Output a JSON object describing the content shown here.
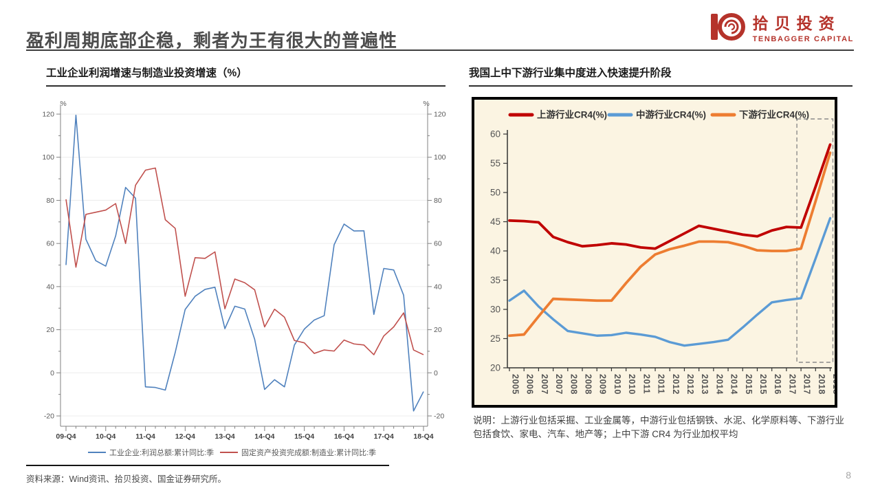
{
  "slide": {
    "title": "盈利周期底部企稳，剩者为王有很大的普遍性",
    "page_number": "8",
    "footer_source": "资料来源：Wind资讯、拾贝投资、国金证券研究所。",
    "logo": {
      "cn": "拾贝投资",
      "en": "TENBAGGER CAPITAL",
      "brand_color": "#b5332b"
    }
  },
  "chart_data": [
    {
      "type": "line",
      "title": "工业企业利润增速与制造业投资增速（%）",
      "y_axis_unit": "%",
      "ylim": [
        -20,
        120
      ],
      "y_ticks": [
        120,
        100,
        80,
        60,
        40,
        20,
        0,
        -20
      ],
      "x_tick_labels": [
        "09-Q4",
        "10-Q4",
        "11-Q4",
        "12-Q4",
        "13-Q4",
        "14-Q4",
        "15-Q4",
        "16-Q4",
        "17-Q4",
        "18-Q4"
      ],
      "x_label_every": 4,
      "grid": "horizontal-light",
      "legend_position": "bottom",
      "series": [
        {
          "name": "工业企业:利润总额:累计同比:季",
          "color": "#4f81bd",
          "values": [
            50,
            119.5,
            62,
            52,
            49.5,
            63.5,
            86,
            81,
            -6.5,
            -6.8,
            -8,
            9.5,
            29.4,
            35.5,
            38.7,
            39.7,
            20.5,
            30.9,
            29.6,
            15.5,
            -7.7,
            -3.2,
            -6.5,
            12.9,
            20.3,
            24.5,
            26.5,
            59.4,
            69,
            65.8,
            65.9,
            27.1,
            48.4,
            47.7,
            36,
            -17.7,
            -8.7
          ]
        },
        {
          "name": "固定资产投资完成额:制造业:累计同比:季",
          "color": "#c0504d",
          "values": [
            80.5,
            49,
            73.5,
            74.5,
            75.5,
            78.5,
            60,
            87,
            94,
            95,
            71,
            67,
            35.5,
            53.4,
            53.1,
            56.1,
            29.7,
            43.5,
            41.8,
            38.5,
            21.3,
            29.5,
            25.8,
            15,
            13.9,
            9,
            10.6,
            10.1,
            15.2,
            13.4,
            12.9,
            8.4,
            17.1,
            21.3,
            27.8,
            10.6,
            8.4
          ]
        }
      ]
    },
    {
      "type": "line",
      "title": "我国上中下游行业集中度进入快速提升阶段",
      "background": "#fbf4e2",
      "ylim": [
        20,
        60
      ],
      "y_ticks": [
        60,
        55,
        50,
        45,
        40,
        35,
        30,
        25,
        20
      ],
      "categories": [
        "2005",
        "2006",
        "2007",
        "2007",
        "2008",
        "2008",
        "2009",
        "2010",
        "2010",
        "2011",
        "2011",
        "2012",
        "2012",
        "2013",
        "2014",
        "2014",
        "2015",
        "2015",
        "2016",
        "2017",
        "2017",
        "2018",
        "2018"
      ],
      "legend_position": "top",
      "highlight_box_last_n": 2,
      "series": [
        {
          "name": "上游行业CR4(%)",
          "color": "#c00000",
          "values": [
            45.2,
            45.1,
            44.9,
            42.4,
            41.5,
            40.8,
            41.0,
            41.3,
            41.1,
            40.6,
            40.4,
            41.7,
            43.0,
            44.3,
            43.8,
            43.3,
            42.8,
            42.5,
            43.5,
            44.1,
            44.0,
            51.0,
            58.2
          ]
        },
        {
          "name": "中游行业CR4(%)",
          "color": "#5b9bd5",
          "values": [
            31.5,
            33.2,
            30.5,
            28.3,
            26.3,
            25.9,
            25.5,
            25.6,
            26.0,
            25.7,
            25.3,
            24.4,
            23.8,
            24.1,
            24.4,
            24.8,
            26.9,
            29.1,
            31.2,
            31.6,
            31.9,
            38.7,
            45.6
          ]
        },
        {
          "name": "下游行业CR4(%)",
          "color": "#ed7d31",
          "values": [
            25.5,
            25.7,
            28.8,
            31.8,
            31.7,
            31.6,
            31.5,
            31.5,
            34.5,
            37.3,
            39.4,
            40.3,
            40.9,
            41.6,
            41.6,
            41.5,
            40.9,
            40.1,
            40.0,
            40.0,
            40.4,
            48.5,
            56.8
          ]
        }
      ],
      "note": "说明：上游行业包括采掘、工业金属等，中游行业包括钢铁、水泥、化学原料等、下游行业包括食饮、家电、汽车、地产等；上中下游 CR4 为行业加权平均"
    }
  ]
}
